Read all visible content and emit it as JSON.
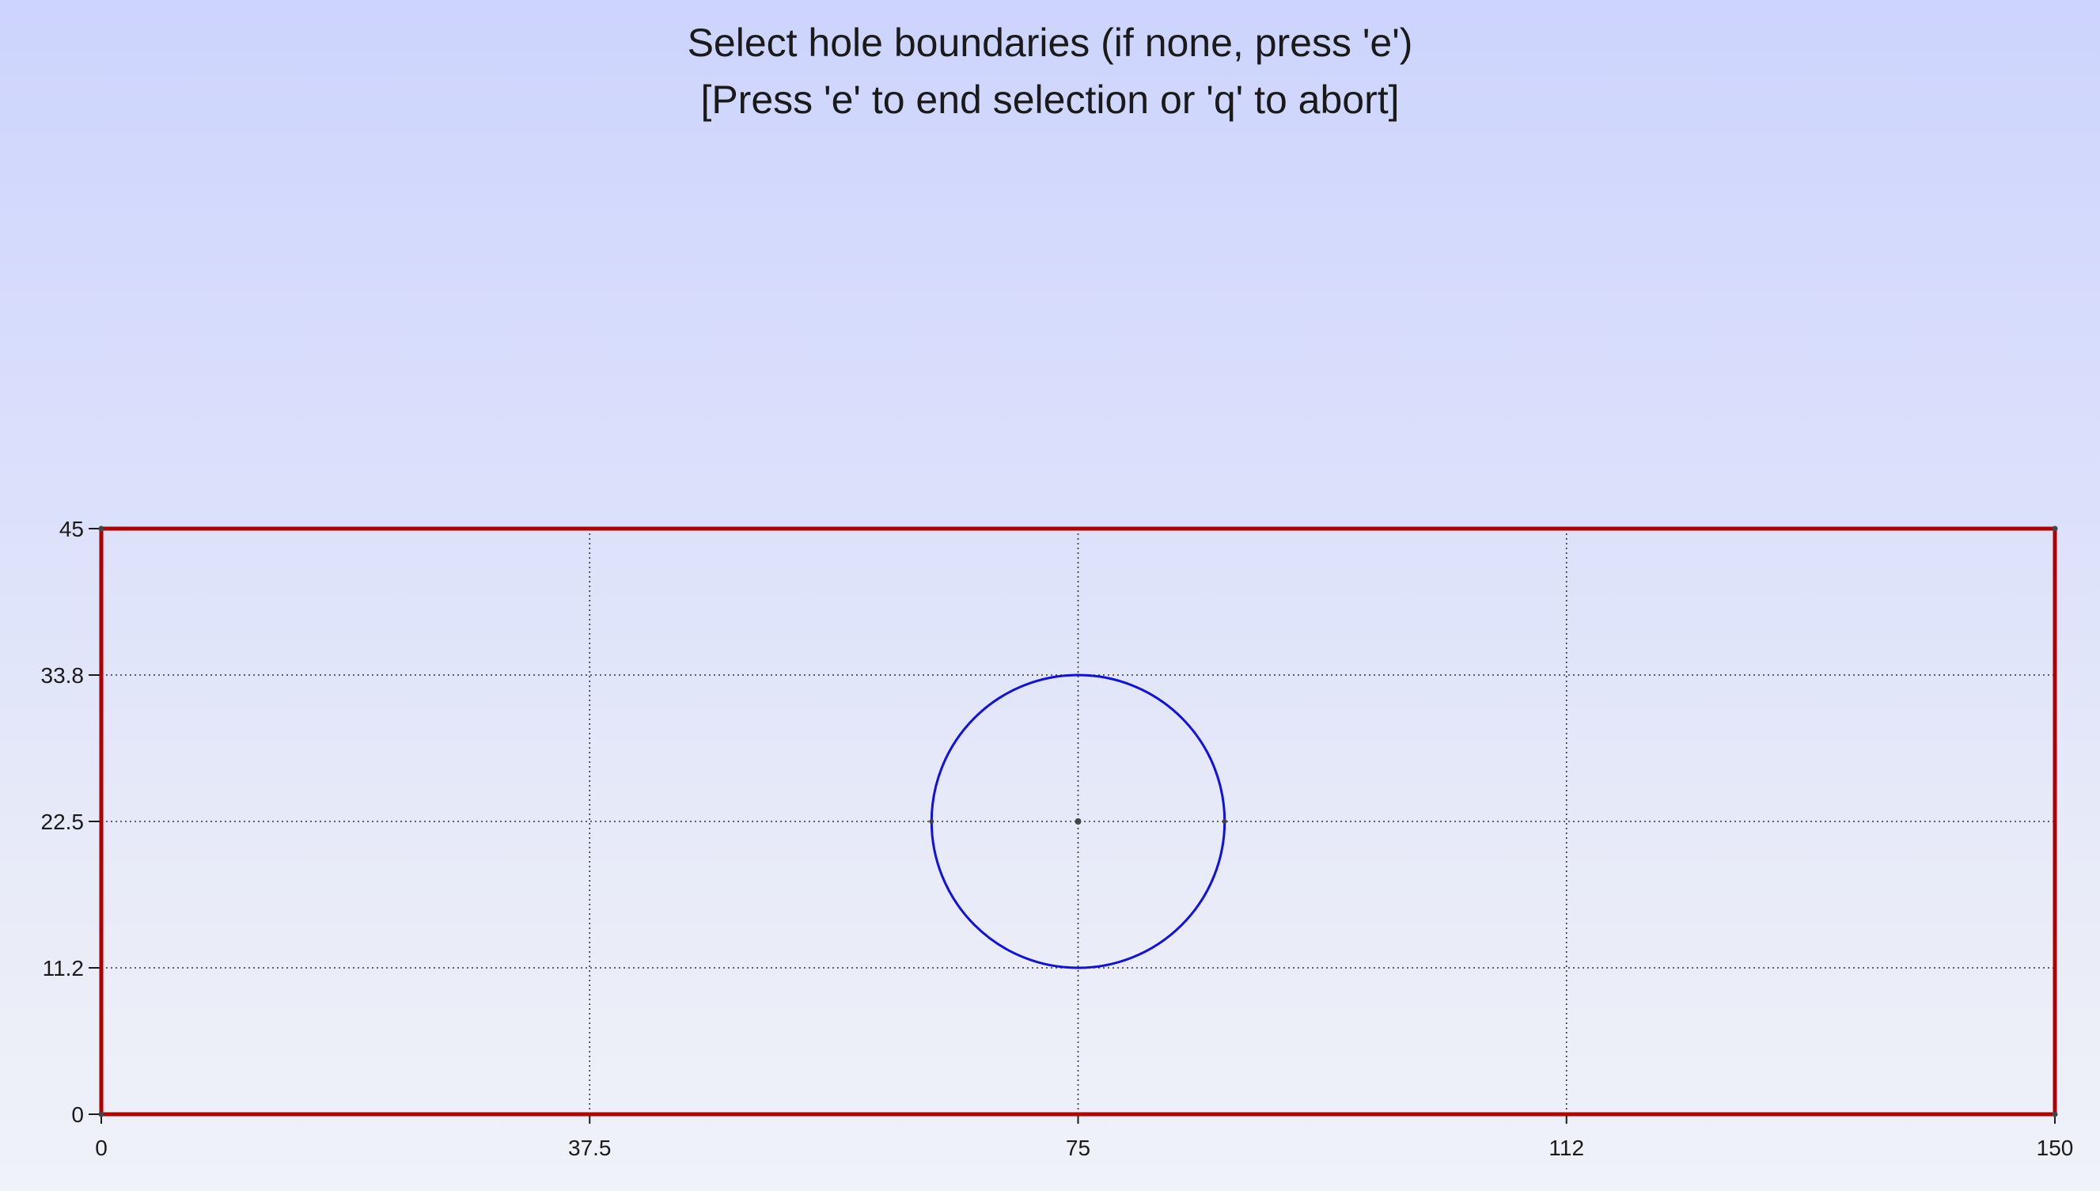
{
  "prompt": {
    "line1": "Select hole boundaries (if none, press 'e')",
    "line2": "[Press 'e' to end selection or 'q' to abort]"
  },
  "plot": {
    "xlim": [
      0,
      150
    ],
    "ylim": [
      0,
      45
    ],
    "xticks": [
      0,
      37.5,
      75,
      112.5,
      150
    ],
    "xtick_labels": [
      "0",
      "37.5",
      "75",
      "112",
      "150"
    ],
    "yticks": [
      0,
      11.25,
      22.5,
      33.75,
      45
    ],
    "ytick_labels": [
      "0",
      "11.2",
      "22.5",
      "33.8",
      "45"
    ],
    "grid": true,
    "outer_boundary": {
      "points": [
        [
          0,
          0
        ],
        [
          150,
          0
        ],
        [
          150,
          45
        ],
        [
          0,
          45
        ],
        [
          0,
          0
        ]
      ],
      "color": "#b00000"
    },
    "hole": {
      "center": [
        75,
        22.5
      ],
      "radius": 11.25,
      "color": "#1010e0"
    }
  },
  "colors": {
    "grid": "#333333",
    "axis": "#1a1a1a"
  }
}
